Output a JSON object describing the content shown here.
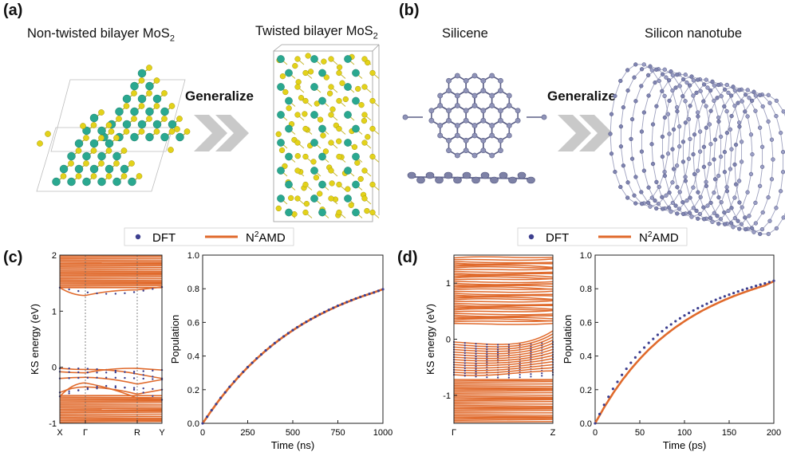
{
  "panels": {
    "a": {
      "label": "(a)",
      "left_title_main": "Non-twisted bilayer MoS",
      "left_title_sub": "2",
      "right_title_main": "Twisted bilayer MoS",
      "right_title_sub": "2",
      "arrow_label": "Generalize"
    },
    "b": {
      "label": "(b)",
      "left_title": "Silicene",
      "right_title": "Silicon nanotube",
      "arrow_label": "Generalize"
    },
    "c": {
      "label": "(c)"
    },
    "d": {
      "label": "(d)"
    }
  },
  "legend": {
    "dft": "DFT",
    "namd_prefix": "N",
    "namd_sup": "2",
    "namd_suffix": "AMD",
    "dft_color": "#3d3f8f",
    "namd_color": "#e06a2c"
  },
  "atom_colors": {
    "molybdenum": "#2aa890",
    "sulfur": "#e3d21a",
    "silicon": "#8f93b8"
  },
  "chart_data": [
    {
      "type": "line",
      "panel": "c-left",
      "ylabel": "KS energy (eV)",
      "ylim": [
        -1,
        2
      ],
      "yticks": [
        "-1",
        "0",
        "1",
        "2"
      ],
      "xticks": [
        "X",
        "Γ",
        "R",
        "Y"
      ],
      "series": [
        {
          "name": "DFT"
        },
        {
          "name": "N2AMD"
        }
      ]
    },
    {
      "type": "line",
      "panel": "c-right",
      "xlabel": "Time (ns)",
      "ylabel": "Population",
      "xlim": [
        0,
        1000
      ],
      "ylim": [
        0,
        1.0
      ],
      "xticks": [
        "0",
        "250",
        "500",
        "750",
        "1000"
      ],
      "yticks": [
        "0.0",
        "0.2",
        "0.4",
        "0.6",
        "0.8",
        "1.0"
      ],
      "x": [
        0,
        50,
        100,
        150,
        200,
        250,
        300,
        350,
        400,
        450,
        500,
        550,
        600,
        650,
        700,
        750,
        800,
        850,
        900,
        950,
        1000
      ],
      "series": [
        {
          "name": "DFT",
          "values": [
            0.0,
            0.078,
            0.151,
            0.217,
            0.278,
            0.334,
            0.386,
            0.433,
            0.477,
            0.517,
            0.554,
            0.588,
            0.619,
            0.648,
            0.674,
            0.699,
            0.721,
            0.742,
            0.761,
            0.778,
            0.797
          ]
        },
        {
          "name": "N2AMD",
          "values": [
            0.0,
            0.077,
            0.15,
            0.216,
            0.277,
            0.333,
            0.385,
            0.432,
            0.476,
            0.516,
            0.553,
            0.587,
            0.618,
            0.647,
            0.673,
            0.698,
            0.72,
            0.741,
            0.76,
            0.778,
            0.797
          ]
        }
      ]
    },
    {
      "type": "line",
      "panel": "d-left",
      "ylabel": "KS energy (eV)",
      "ylim": [
        -1.5,
        1.5
      ],
      "yticks": [
        "-1",
        "0",
        "1"
      ],
      "xticks": [
        "Γ",
        "Z"
      ],
      "series": [
        {
          "name": "DFT"
        },
        {
          "name": "N2AMD"
        }
      ]
    },
    {
      "type": "line",
      "panel": "d-right",
      "xlabel": "Time (ps)",
      "ylabel": "Population",
      "xlim": [
        0,
        200
      ],
      "ylim": [
        0,
        1.0
      ],
      "xticks": [
        "0",
        "50",
        "100",
        "150",
        "200"
      ],
      "yticks": [
        "0.0",
        "0.2",
        "0.4",
        "0.6",
        "0.8",
        "1.0"
      ],
      "x": [
        0,
        10,
        20,
        30,
        40,
        50,
        60,
        70,
        80,
        90,
        100,
        110,
        120,
        130,
        140,
        150,
        160,
        170,
        180,
        190,
        200
      ],
      "series": [
        {
          "name": "DFT",
          "values": [
            0.0,
            0.11,
            0.205,
            0.288,
            0.36,
            0.423,
            0.478,
            0.526,
            0.569,
            0.607,
            0.641,
            0.671,
            0.698,
            0.723,
            0.745,
            0.765,
            0.784,
            0.801,
            0.817,
            0.832,
            0.847
          ]
        },
        {
          "name": "N2AMD",
          "values": [
            0.0,
            0.094,
            0.178,
            0.254,
            0.322,
            0.383,
            0.438,
            0.487,
            0.531,
            0.571,
            0.607,
            0.64,
            0.67,
            0.697,
            0.722,
            0.745,
            0.766,
            0.785,
            0.803,
            0.82,
            0.845
          ]
        }
      ]
    }
  ]
}
